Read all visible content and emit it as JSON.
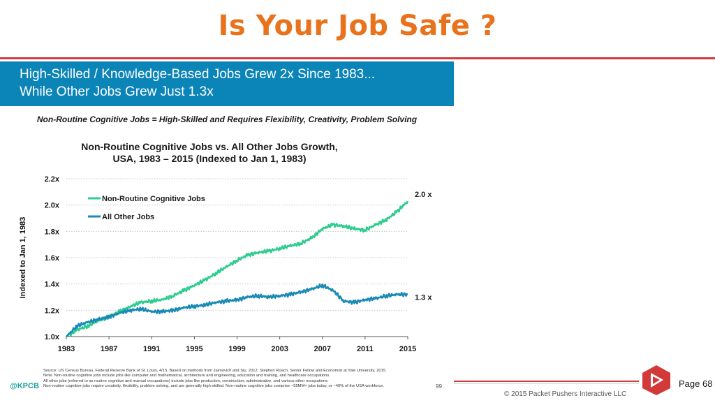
{
  "slide": {
    "title": "Is Your Job Safe ?",
    "page_label": "Page 68",
    "copyright": "© 2015 Packet Pushers Interactive LLC"
  },
  "panel": {
    "banner_line1": "High-Skilled / Knowledge-Based Jobs Grew 2x Since 1983...",
    "banner_line2": "While Other Jobs Grew Just 1.3x",
    "subtitle": "Non-Routine Cognitive Jobs = High-Skilled and Requires Flexibility, Creativity, Problem Solving",
    "handle": "@KPCB",
    "inner_page": "99",
    "footer": [
      "Source: US Census Bureau, Federal Reserve Bank of St. Louis, 4/15. Based on methods from Jaimovich and Siu, 2012. Stephen Roach, Senior Fellow and Economist at Yale University, 2015.",
      "Note: Non-routine cognitive jobs include jobs like computer and mathematical, architecture and engineering, education and training, and healthcare occupations.",
      "All other jobs (referred to as routine cognitive and manual occupations) include jobs like production, construction, administrative, and various other occupations.",
      "Non-routine cognitive jobs require creativity, flexibility, problem solving, and are generally high-skilled. Non-routine cognitive jobs comprise ~55MM+ jobs today, or ~40% of the USA workforce."
    ]
  },
  "chart_data": {
    "type": "line",
    "title_line1": "Non-Routine Cognitive Jobs vs. All Other Jobs Growth,",
    "title_line2": "USA, 1983 – 2015 (Indexed to Jan 1, 1983)",
    "ylabel": "Indexed to Jan 1, 1983",
    "xlabel": "",
    "xlim": [
      1983,
      2015
    ],
    "ylim": [
      1.0,
      2.2
    ],
    "xticks": [
      1983,
      1987,
      1991,
      1995,
      1999,
      2003,
      2007,
      2011,
      2015
    ],
    "yticks": [
      {
        "value": 1.0,
        "label": "1.0x"
      },
      {
        "value": 1.2,
        "label": "1.2x"
      },
      {
        "value": 1.4,
        "label": "1.4x"
      },
      {
        "value": 1.6,
        "label": "1.6x"
      },
      {
        "value": 1.8,
        "label": "1.8x"
      },
      {
        "value": 2.0,
        "label": "2.0x"
      },
      {
        "value": 2.2,
        "label": "2.2x"
      }
    ],
    "grid": true,
    "legend_position": "top-left",
    "series": [
      {
        "name": "Non-Routine Cognitive Jobs",
        "color": "#2ecc8e",
        "end_label": "2.0 x",
        "x": [
          1983,
          1984,
          1985,
          1986,
          1987,
          1988,
          1989,
          1990,
          1991,
          1992,
          1993,
          1994,
          1995,
          1996,
          1997,
          1998,
          1999,
          2000,
          2001,
          2002,
          2003,
          2004,
          2005,
          2006,
          2007,
          2008,
          2009,
          2010,
          2011,
          2012,
          2013,
          2014,
          2015
        ],
        "y": [
          1.0,
          1.05,
          1.08,
          1.12,
          1.15,
          1.19,
          1.23,
          1.26,
          1.27,
          1.28,
          1.31,
          1.35,
          1.39,
          1.43,
          1.48,
          1.53,
          1.58,
          1.62,
          1.64,
          1.65,
          1.67,
          1.69,
          1.71,
          1.75,
          1.82,
          1.85,
          1.84,
          1.82,
          1.81,
          1.85,
          1.89,
          1.95,
          2.03
        ]
      },
      {
        "name": "All Other Jobs",
        "color": "#1a8ab5",
        "end_label": "1.3 x",
        "x": [
          1983,
          1984,
          1985,
          1986,
          1987,
          1988,
          1989,
          1990,
          1991,
          1992,
          1993,
          1994,
          1995,
          1996,
          1997,
          1998,
          1999,
          2000,
          2001,
          2002,
          2003,
          2004,
          2005,
          2006,
          2007,
          2008,
          2009,
          2010,
          2011,
          2012,
          2013,
          2014,
          2015
        ],
        "y": [
          1.0,
          1.08,
          1.11,
          1.13,
          1.15,
          1.18,
          1.2,
          1.21,
          1.19,
          1.19,
          1.2,
          1.22,
          1.23,
          1.24,
          1.26,
          1.27,
          1.28,
          1.3,
          1.31,
          1.3,
          1.31,
          1.32,
          1.34,
          1.36,
          1.39,
          1.35,
          1.27,
          1.26,
          1.28,
          1.29,
          1.31,
          1.32,
          1.32
        ]
      }
    ]
  }
}
